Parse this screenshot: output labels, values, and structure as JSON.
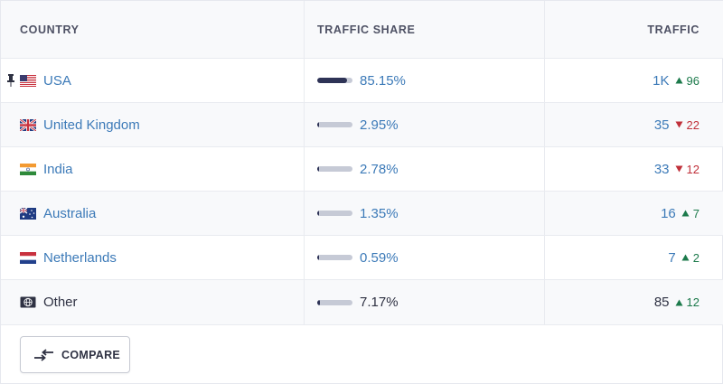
{
  "headers": {
    "country": "COUNTRY",
    "share": "TRAFFIC SHARE",
    "traffic": "TRAFFIC"
  },
  "rows": [
    {
      "country": "USA",
      "flag": "us-flag",
      "share": "85.15%",
      "share_fraction": 0.8515,
      "traffic": "1K",
      "delta": "96",
      "direction": "up",
      "pinned": true
    },
    {
      "country": "United Kingdom",
      "flag": "uk-flag",
      "share": "2.95%",
      "share_fraction": 0.0295,
      "traffic": "35",
      "delta": "22",
      "direction": "down"
    },
    {
      "country": "India",
      "flag": "india-flag",
      "share": "2.78%",
      "share_fraction": 0.0278,
      "traffic": "33",
      "delta": "12",
      "direction": "down"
    },
    {
      "country": "Australia",
      "flag": "australia-flag",
      "share": "1.35%",
      "share_fraction": 0.0135,
      "traffic": "16",
      "delta": "7",
      "direction": "up"
    },
    {
      "country": "Netherlands",
      "flag": "netherlands-flag",
      "share": "0.59%",
      "share_fraction": 0.0059,
      "traffic": "7",
      "delta": "2",
      "direction": "up"
    },
    {
      "country": "Other",
      "flag": "globe-icon",
      "share": "7.17%",
      "share_fraction": 0.0717,
      "traffic": "85",
      "delta": "12",
      "direction": "up"
    }
  ],
  "compare": {
    "label": "COMPARE"
  },
  "colors": {
    "link": "#3c7ab8",
    "up": "#1c7a4b",
    "down": "#c0303a",
    "bar_fill": "#2e3356",
    "bar_track": "#c6cad6"
  }
}
